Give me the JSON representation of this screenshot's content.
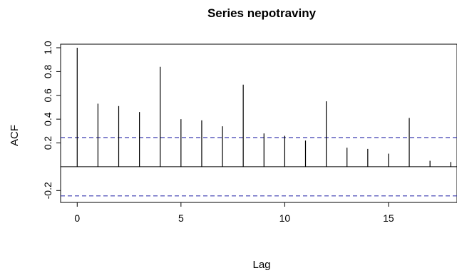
{
  "chart_data": {
    "type": "bar",
    "title": "Series  nepotraviny",
    "xlabel": "Lag",
    "ylabel": "ACF",
    "xlim": [
      -0.8,
      18.3
    ],
    "ylim": [
      -0.3,
      1.03
    ],
    "x_ticks": [
      0,
      5,
      10,
      15
    ],
    "x_tick_labels": [
      "0",
      "5",
      "10",
      "15"
    ],
    "y_ticks": [
      -0.2,
      0.2,
      0.4,
      0.6,
      0.8,
      1.0
    ],
    "y_tick_labels": [
      "-0.2",
      "0.2",
      "0.4",
      "0.6",
      "0.8",
      "1.0"
    ],
    "lags": [
      0,
      1,
      2,
      3,
      4,
      5,
      6,
      7,
      8,
      9,
      10,
      11,
      12,
      13,
      14,
      15,
      16,
      17,
      18
    ],
    "values": [
      1.0,
      0.53,
      0.51,
      0.46,
      0.84,
      0.4,
      0.39,
      0.34,
      0.69,
      0.28,
      0.26,
      0.22,
      0.55,
      0.16,
      0.15,
      0.11,
      0.41,
      0.05,
      0.04
    ],
    "confidence_bound": 0.245,
    "colors": {
      "spike": "#000000",
      "ci": "#3a3ab0"
    }
  }
}
